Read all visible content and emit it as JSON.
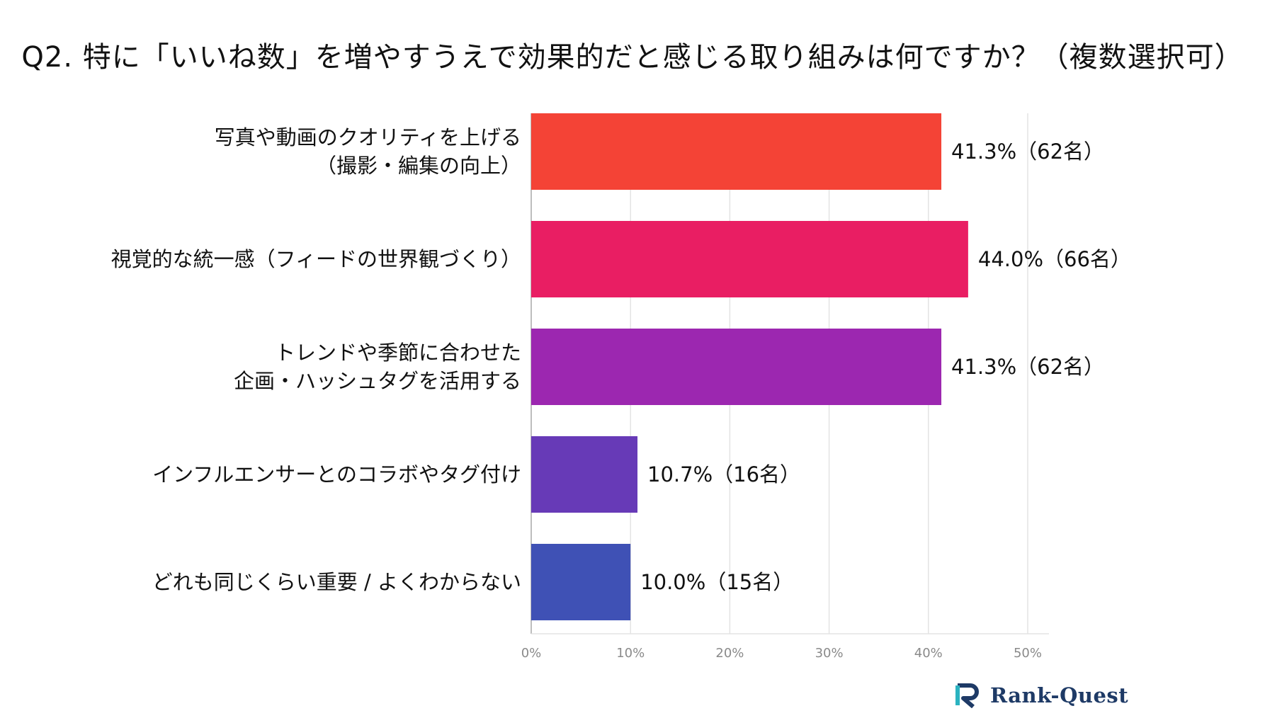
{
  "chart_data": {
    "type": "bar",
    "orientation": "horizontal",
    "title": "Q2. 特に「いいね数」を増やすうえで効果的だと感じる取り組みは何ですか？（複数選択可）",
    "categories": [
      [
        "写真や動画のクオリティを上げる",
        "（撮影・編集の向上）"
      ],
      [
        "視覚的な統一感（フィードの世界観づくり）"
      ],
      [
        "トレンドや季節に合わせた",
        "企画・ハッシュタグを活用する"
      ],
      [
        "インフルエンサーとのコラボやタグ付け"
      ],
      [
        "どれも同じくらい重要 / よくわからない"
      ]
    ],
    "values": [
      41.3,
      44.0,
      41.3,
      10.7,
      10.0
    ],
    "data_labels": [
      "41.3%（62名）",
      "44.0%（66名）",
      "41.3%（62名）",
      "10.7%（16名）",
      "10.0%（15名）"
    ],
    "bar_colors": [
      "#f44336",
      "#e91e63",
      "#9c27b0",
      "#673ab7",
      "#3f51b5"
    ],
    "xlim": [
      0,
      50
    ],
    "x_ticks": [
      0,
      10,
      20,
      30,
      40,
      50
    ],
    "x_tick_labels": [
      "0%",
      "10%",
      "20%",
      "30%",
      "40%",
      "50%"
    ],
    "grid": true,
    "xlabel": "",
    "ylabel": ""
  },
  "logo": {
    "text": "Rank-Quest",
    "icon": "rank-quest-logo-icon",
    "colors": {
      "navy": "#1e3a66",
      "teal": "#2bb3c0"
    }
  }
}
